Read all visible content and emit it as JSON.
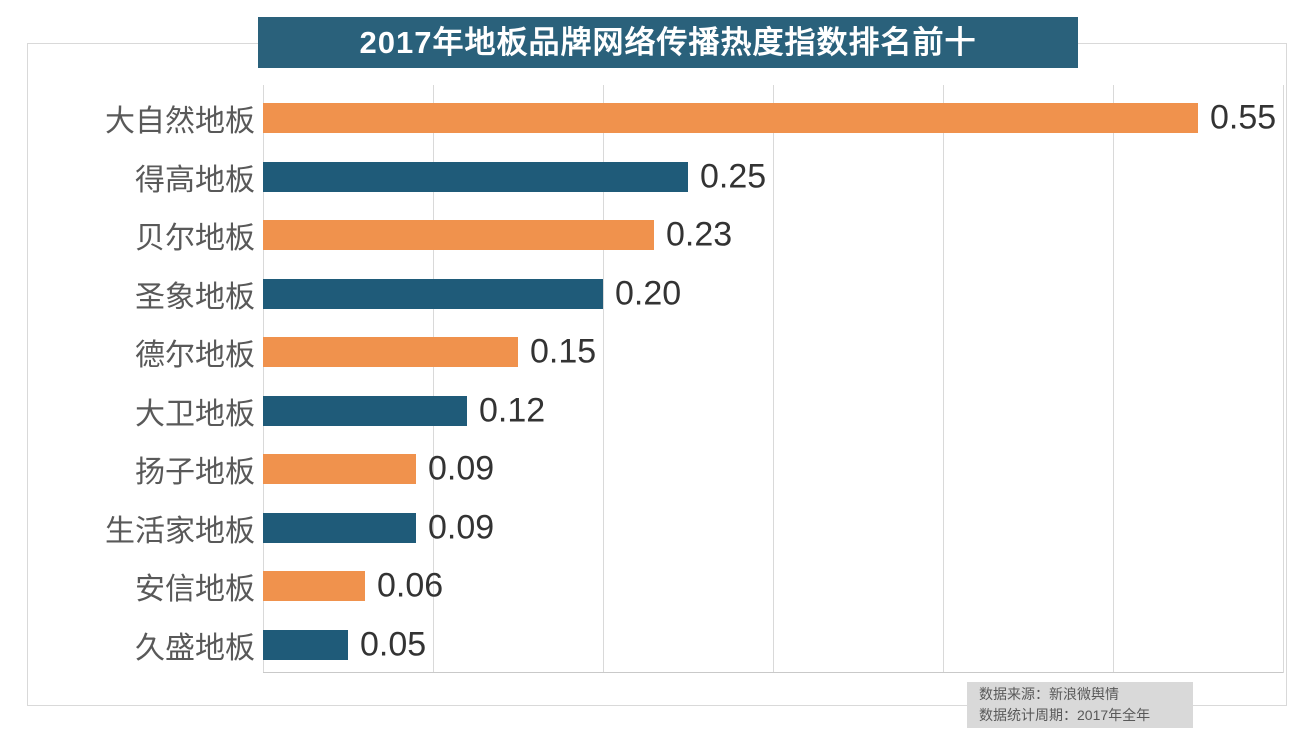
{
  "title": "2017年地板品牌网络传播热度指数排名前十",
  "source": {
    "line1": "数据来源：新浪微舆情",
    "line2": "数据统计周期：2017年全年"
  },
  "colors": {
    "title_bg": "#2A617B",
    "bar_orange": "#F0924D",
    "bar_teal": "#1F5B79",
    "grid": "#D9D9D9",
    "label_text": "#595959",
    "value_text": "#333333",
    "source_bg": "#D9D9D9",
    "source_text": "#595959",
    "frame_border": "#D9D9D9"
  },
  "chart_data": {
    "type": "bar",
    "orientation": "horizontal",
    "title": "2017年地板品牌网络传播热度指数排名前十",
    "categories": [
      "大自然地板",
      "得高地板",
      "贝尔地板",
      "圣象地板",
      "德尔地板",
      "大卫地板",
      "扬子地板",
      "生活家地板",
      "安信地板",
      "久盛地板"
    ],
    "values": [
      0.55,
      0.25,
      0.23,
      0.2,
      0.15,
      0.12,
      0.09,
      0.09,
      0.06,
      0.05
    ],
    "value_labels": [
      "0.55",
      "0.25",
      "0.23",
      "0.20",
      "0.15",
      "0.12",
      "0.09",
      "0.09",
      "0.06",
      "0.05"
    ],
    "xlabel": "",
    "ylabel": "",
    "xlim": [
      0,
      0.6
    ],
    "grid_step": 0.1,
    "grid": true,
    "legend": false,
    "bar_colors_alternating": [
      "#F0924D",
      "#1F5B79"
    ],
    "data_labels_position": "right-of-bar",
    "annotations": [
      "数据来源：新浪微舆情",
      "数据统计周期：2017年全年"
    ]
  }
}
